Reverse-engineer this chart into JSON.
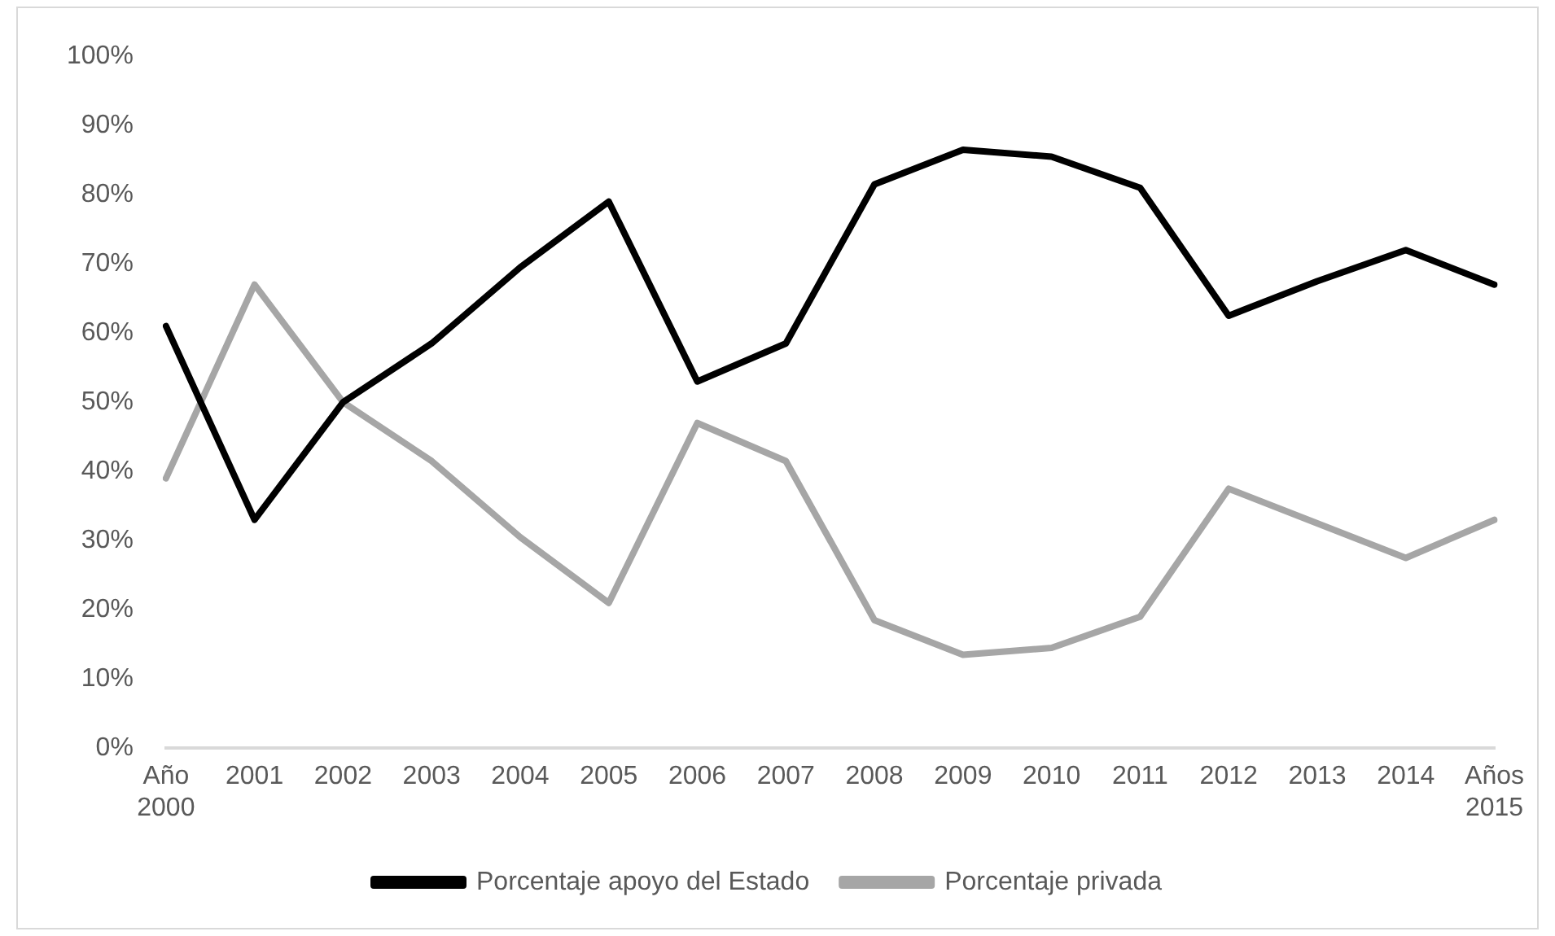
{
  "chart_data": {
    "type": "line",
    "categories": [
      "Año 2000",
      "2001",
      "2002",
      "2003",
      "2004",
      "2005",
      "2006",
      "2007",
      "2008",
      "2009",
      "2010",
      "2011",
      "2012",
      "2013",
      "2014",
      "Años 2015"
    ],
    "series": [
      {
        "name": "Porcentaje apoyo del Estado",
        "color": "#000000",
        "values": [
          61,
          33,
          50,
          58.5,
          69.5,
          79,
          53,
          58.5,
          81.5,
          86.5,
          85.5,
          81,
          62.5,
          67.5,
          72,
          67
        ]
      },
      {
        "name": "Porcentaje privada",
        "color": "#a6a6a6",
        "values": [
          39,
          67,
          50,
          41.5,
          30.5,
          21,
          47,
          41.5,
          18.5,
          13.5,
          14.5,
          19,
          37.5,
          32.5,
          27.5,
          33
        ]
      }
    ],
    "ylim": [
      0,
      100
    ],
    "yticks": [
      {
        "value": 0,
        "label": "0%"
      },
      {
        "value": 10,
        "label": "10%"
      },
      {
        "value": 20,
        "label": "20%"
      },
      {
        "value": 30,
        "label": "30%"
      },
      {
        "value": 40,
        "label": "40%"
      },
      {
        "value": 50,
        "label": "50%"
      },
      {
        "value": 60,
        "label": "60%"
      },
      {
        "value": 70,
        "label": "70%"
      },
      {
        "value": 80,
        "label": "80%"
      },
      {
        "value": 90,
        "label": "90%"
      },
      {
        "value": 100,
        "label": "100%"
      }
    ],
    "grid": false,
    "legend": "bottom",
    "marker": "none",
    "line_style": "solid"
  }
}
